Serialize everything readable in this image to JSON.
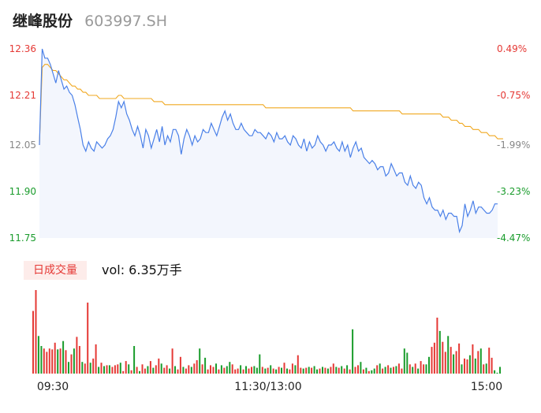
{
  "header": {
    "stock_name": "继峰股份",
    "stock_code": "603997.SH"
  },
  "volume_panel": {
    "tab_label": "日成交量",
    "vol_label": "vol: 6.35万手"
  },
  "colors": {
    "up": "#e53935",
    "down": "#1a9c2c",
    "price_line": "#4a80e8",
    "avg_line": "#f0a820",
    "area_fill": "#f3f6fd"
  },
  "chart_data": [
    {
      "type": "line",
      "title": "",
      "x_tick_labels": [
        "09:30",
        "11:30/13:00",
        "15:00"
      ],
      "y_tick_labels": [
        "12.36",
        "12.21",
        "12.05",
        "11.90",
        "11.75"
      ],
      "y_tick_values": [
        12.36,
        12.21,
        12.05,
        11.9,
        11.75
      ],
      "right_tick_labels": [
        "0.49%",
        "-0.75%",
        "-1.99%",
        "-3.23%",
        "-4.47%"
      ],
      "prev_close": 12.3,
      "ylim": [
        11.75,
        12.36
      ],
      "series": [
        {
          "role": "price",
          "values": [
            12.05,
            12.36,
            12.33,
            12.33,
            12.31,
            12.28,
            12.25,
            12.29,
            12.26,
            12.23,
            12.24,
            12.22,
            12.21,
            12.18,
            12.14,
            12.1,
            12.05,
            12.03,
            12.06,
            12.04,
            12.03,
            12.06,
            12.05,
            12.04,
            12.05,
            12.07,
            12.08,
            12.1,
            12.14,
            12.19,
            12.17,
            12.19,
            12.15,
            12.13,
            12.1,
            12.08,
            12.11,
            12.08,
            12.04,
            12.1,
            12.08,
            12.04,
            12.07,
            12.1,
            12.06,
            12.11,
            12.05,
            12.08,
            12.06,
            12.1,
            12.1,
            12.08,
            12.02,
            12.07,
            12.1,
            12.08,
            12.05,
            12.08,
            12.06,
            12.07,
            12.1,
            12.09,
            12.09,
            12.12,
            12.1,
            12.08,
            12.11,
            12.14,
            12.16,
            12.13,
            12.15,
            12.12,
            12.1,
            12.1,
            12.12,
            12.1,
            12.09,
            12.08,
            12.08,
            12.1,
            12.09,
            12.09,
            12.08,
            12.07,
            12.09,
            12.08,
            12.06,
            12.09,
            12.07,
            12.07,
            12.08,
            12.06,
            12.05,
            12.08,
            12.07,
            12.05,
            12.04,
            12.07,
            12.03,
            12.06,
            12.04,
            12.05,
            12.08,
            12.06,
            12.05,
            12.03,
            12.05,
            12.05,
            12.06,
            12.04,
            12.03,
            12.06,
            12.03,
            12.05,
            12.01,
            12.04,
            12.06,
            12.03,
            12.04,
            12.01,
            12.0,
            11.99,
            12.0,
            11.99,
            11.97,
            11.98,
            11.98,
            11.95,
            11.96,
            11.99,
            11.97,
            11.95,
            11.96,
            11.96,
            11.93,
            11.92,
            11.95,
            11.92,
            11.91,
            11.93,
            11.92,
            11.88,
            11.86,
            11.88,
            11.85,
            11.84,
            11.84,
            11.82,
            11.84,
            11.81,
            11.83,
            11.83,
            11.82,
            11.82,
            11.77,
            11.79,
            11.86,
            11.82,
            11.84,
            11.87,
            11.83,
            11.85,
            11.85,
            11.84,
            11.83,
            11.83,
            11.84,
            11.86,
            11.86
          ]
        },
        {
          "role": "average",
          "values": [
            12.05,
            12.3,
            12.31,
            12.31,
            12.3,
            12.29,
            12.29,
            12.28,
            12.27,
            12.26,
            12.26,
            12.25,
            12.24,
            12.24,
            12.23,
            12.23,
            12.22,
            12.22,
            12.21,
            12.21,
            12.21,
            12.21,
            12.2,
            12.2,
            12.2,
            12.2,
            12.2,
            12.2,
            12.2,
            12.21,
            12.21,
            12.2,
            12.2,
            12.2,
            12.2,
            12.2,
            12.2,
            12.2,
            12.2,
            12.2,
            12.2,
            12.2,
            12.19,
            12.19,
            12.19,
            12.19,
            12.18,
            12.18,
            12.18,
            12.18,
            12.18,
            12.18,
            12.18,
            12.18,
            12.18,
            12.18,
            12.18,
            12.18,
            12.18,
            12.18,
            12.18,
            12.18,
            12.18,
            12.18,
            12.18,
            12.18,
            12.18,
            12.18,
            12.18,
            12.18,
            12.18,
            12.18,
            12.18,
            12.18,
            12.18,
            12.18,
            12.18,
            12.18,
            12.18,
            12.18,
            12.18,
            12.18,
            12.18,
            12.17,
            12.17,
            12.17,
            12.17,
            12.17,
            12.17,
            12.17,
            12.17,
            12.17,
            12.17,
            12.17,
            12.17,
            12.17,
            12.17,
            12.17,
            12.17,
            12.17,
            12.17,
            12.17,
            12.17,
            12.17,
            12.17,
            12.17,
            12.17,
            12.17,
            12.17,
            12.17,
            12.17,
            12.17,
            12.17,
            12.17,
            12.17,
            12.16,
            12.16,
            12.16,
            12.16,
            12.16,
            12.16,
            12.16,
            12.16,
            12.16,
            12.16,
            12.16,
            12.16,
            12.16,
            12.16,
            12.16,
            12.16,
            12.16,
            12.16,
            12.15,
            12.15,
            12.15,
            12.15,
            12.15,
            12.15,
            12.15,
            12.15,
            12.15,
            12.15,
            12.15,
            12.15,
            12.15,
            12.15,
            12.15,
            12.14,
            12.14,
            12.14,
            12.13,
            12.13,
            12.13,
            12.12,
            12.12,
            12.11,
            12.11,
            12.11,
            12.1,
            12.1,
            12.1,
            12.09,
            12.09,
            12.09,
            12.08,
            12.08,
            12.08,
            12.07,
            12.07,
            12.07
          ]
        }
      ]
    },
    {
      "type": "bar",
      "title": "",
      "x_tick_labels": [
        "09:30",
        "11:30/13:00",
        "15:00"
      ],
      "ylim": [
        0,
        1
      ],
      "values": [
        0.75,
        1.0,
        0.45,
        0.33,
        0.3,
        0.26,
        0.3,
        0.29,
        0.37,
        0.29,
        0.3,
        0.39,
        0.28,
        0.14,
        0.23,
        0.3,
        0.44,
        0.33,
        0.14,
        0.12,
        0.85,
        0.13,
        0.18,
        0.35,
        0.08,
        0.13,
        0.09,
        0.1,
        0.1,
        0.08,
        0.1,
        0.11,
        0.13,
        0.03,
        0.15,
        0.11,
        0.04,
        0.33,
        0.08,
        0.03,
        0.11,
        0.06,
        0.09,
        0.15,
        0.07,
        0.1,
        0.18,
        0.12,
        0.07,
        0.1,
        0.06,
        0.3,
        0.09,
        0.05,
        0.2,
        0.08,
        0.06,
        0.1,
        0.08,
        0.12,
        0.16,
        0.3,
        0.11,
        0.19,
        0.05,
        0.1,
        0.08,
        0.12,
        0.05,
        0.1,
        0.07,
        0.09,
        0.14,
        0.11,
        0.05,
        0.06,
        0.1,
        0.05,
        0.09,
        0.06,
        0.08,
        0.09,
        0.07,
        0.23,
        0.08,
        0.06,
        0.07,
        0.1,
        0.06,
        0.05,
        0.08,
        0.07,
        0.13,
        0.06,
        0.05,
        0.12,
        0.1,
        0.22,
        0.07,
        0.06,
        0.07,
        0.08,
        0.07,
        0.09,
        0.05,
        0.06,
        0.08,
        0.07,
        0.06,
        0.08,
        0.12,
        0.08,
        0.07,
        0.09,
        0.06,
        0.1,
        0.05,
        0.53,
        0.08,
        0.1,
        0.14,
        0.05,
        0.07,
        0.03,
        0.04,
        0.06,
        0.1,
        0.12,
        0.06,
        0.08,
        0.1,
        0.07,
        0.08,
        0.09,
        0.12,
        0.06,
        0.3,
        0.25,
        0.11,
        0.08,
        0.12,
        0.06,
        0.15,
        0.11,
        0.11,
        0.2,
        0.32,
        0.37,
        0.67,
        0.51,
        0.38,
        0.26,
        0.45,
        0.32,
        0.23,
        0.27,
        0.36,
        0.11,
        0.18,
        0.17,
        0.22,
        0.35,
        0.18,
        0.27,
        0.3,
        0.11,
        0.12,
        0.31,
        0.19,
        0.04,
        0.01,
        0.08
      ],
      "directions": [
        "up",
        "up",
        "down",
        "down",
        "up",
        "up",
        "up",
        "up",
        "up",
        "down",
        "up",
        "down",
        "up",
        "down",
        "up",
        "down",
        "up",
        "up",
        "down",
        "up",
        "up",
        "down",
        "up",
        "up",
        "down",
        "up",
        "down",
        "up",
        "down",
        "up",
        "up",
        "up",
        "down",
        "up",
        "up",
        "down",
        "up",
        "down",
        "up",
        "down",
        "up",
        "up",
        "down",
        "up",
        "down",
        "up",
        "up",
        "down",
        "up",
        "up",
        "down",
        "up",
        "down",
        "up",
        "up",
        "down",
        "up",
        "up",
        "down",
        "up",
        "up",
        "down",
        "up",
        "down",
        "up",
        "up",
        "up",
        "down",
        "up",
        "down",
        "up",
        "down",
        "down",
        "up",
        "up",
        "up",
        "down",
        "up",
        "down",
        "up",
        "up",
        "down",
        "down",
        "down",
        "up",
        "down",
        "up",
        "down",
        "up",
        "down",
        "up",
        "down",
        "up",
        "down",
        "up",
        "up",
        "down",
        "up",
        "up",
        "down",
        "up",
        "down",
        "up",
        "down",
        "down",
        "up",
        "down",
        "up",
        "down",
        "up",
        "up",
        "down",
        "up",
        "down",
        "up",
        "down",
        "up",
        "down",
        "up",
        "up",
        "down",
        "up",
        "down",
        "up",
        "down",
        "down",
        "up",
        "down",
        "up",
        "down",
        "up",
        "down",
        "up",
        "down",
        "up",
        "up",
        "down",
        "down",
        "up",
        "down",
        "up",
        "down",
        "up",
        "up",
        "down",
        "down",
        "up",
        "up",
        "up",
        "down",
        "up",
        "up",
        "down",
        "up",
        "down",
        "up",
        "up",
        "down",
        "up",
        "up",
        "down",
        "up",
        "down",
        "up",
        "down",
        "up",
        "down",
        "up",
        "up",
        "down",
        "down"
      ]
    }
  ]
}
